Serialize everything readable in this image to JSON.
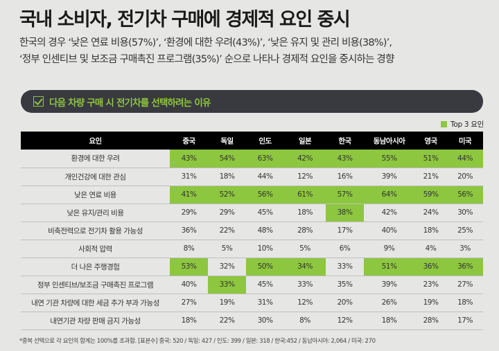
{
  "title": "국내 소비자, 전기차 구매에 경제적 요인 중시",
  "subtitle_lines": [
    "한국의 경우 ‘낮은 연료 비용(57%)’, ‘환경에 대한 우려(43%)’, ‘낮은 유지 및 관리 비용(38%)’,",
    "‘정부 인센티브 및 보조금 구매촉진 프로그램(35%)’ 순으로 나타나 경제적 요인을 중시하는 경향"
  ],
  "section_title": "다음 차량 구매 시 전기차를 선택하려는 이유",
  "legend": {
    "label": "Top 3 요인",
    "color": "#8dc63f"
  },
  "table": {
    "headers": [
      "요인",
      "중국",
      "독일",
      "인도",
      "일본",
      "한국",
      "동남아시아",
      "영국",
      "미국"
    ],
    "rows": [
      {
        "factor": "환경에 대한 우려",
        "values": [
          "43%",
          "54%",
          "63%",
          "42%",
          "43%",
          "55%",
          "51%",
          "44%"
        ],
        "top3": [
          1,
          1,
          1,
          1,
          1,
          1,
          1,
          1
        ]
      },
      {
        "factor": "개인건강에 대한 관심",
        "values": [
          "31%",
          "18%",
          "44%",
          "12%",
          "16%",
          "39%",
          "21%",
          "20%"
        ],
        "top3": [
          0,
          0,
          0,
          0,
          0,
          0,
          0,
          0
        ]
      },
      {
        "factor": "낮은 연료 비용",
        "values": [
          "41%",
          "52%",
          "56%",
          "61%",
          "57%",
          "64%",
          "59%",
          "56%"
        ],
        "top3": [
          1,
          1,
          1,
          1,
          1,
          1,
          1,
          1
        ]
      },
      {
        "factor": "낮은 유지/관리 비용",
        "values": [
          "29%",
          "29%",
          "45%",
          "18%",
          "38%",
          "42%",
          "24%",
          "30%"
        ],
        "top3": [
          0,
          0,
          0,
          0,
          1,
          0,
          0,
          0
        ]
      },
      {
        "factor": "비축전력으로 전기차 활용 가능성",
        "values": [
          "36%",
          "22%",
          "48%",
          "28%",
          "17%",
          "40%",
          "18%",
          "25%"
        ],
        "top3": [
          0,
          0,
          0,
          0,
          0,
          0,
          0,
          0
        ]
      },
      {
        "factor": "사회적 압력",
        "values": [
          "8%",
          "5%",
          "10%",
          "5%",
          "6%",
          "9%",
          "4%",
          "3%"
        ],
        "top3": [
          0,
          0,
          0,
          0,
          0,
          0,
          0,
          0
        ]
      },
      {
        "factor": "더 나은 주행경험",
        "values": [
          "53%",
          "32%",
          "50%",
          "34%",
          "33%",
          "51%",
          "36%",
          "36%"
        ],
        "top3": [
          1,
          0,
          1,
          1,
          0,
          1,
          1,
          1
        ]
      },
      {
        "factor": "정부 인센티브/보조금 구매촉진 프로그램",
        "values": [
          "40%",
          "33%",
          "45%",
          "33%",
          "35%",
          "39%",
          "23%",
          "27%"
        ],
        "top3": [
          0,
          1,
          0,
          0,
          0,
          0,
          0,
          0
        ]
      },
      {
        "factor": "내연 기관 차량에 대한 세금 추가 부과 가능성",
        "values": [
          "27%",
          "19%",
          "31%",
          "12%",
          "20%",
          "26%",
          "19%",
          "18%"
        ],
        "top3": [
          0,
          0,
          0,
          0,
          0,
          0,
          0,
          0
        ]
      },
      {
        "factor": "내연기관 차량 판매 금지 가능성",
        "values": [
          "18%",
          "22%",
          "30%",
          "8%",
          "12%",
          "18%",
          "28%",
          "17%"
        ],
        "top3": [
          0,
          0,
          0,
          0,
          0,
          0,
          0,
          0
        ]
      }
    ]
  },
  "footnote": "*중복 선택으로 각 요인의 합계는 100%를 초과함. [표본수] 중국: 520 / 독일: 427 / 인도: 399 / 일본: 318 / 한국:452 / 동남아시아: 2,064 / 미국: 270"
}
